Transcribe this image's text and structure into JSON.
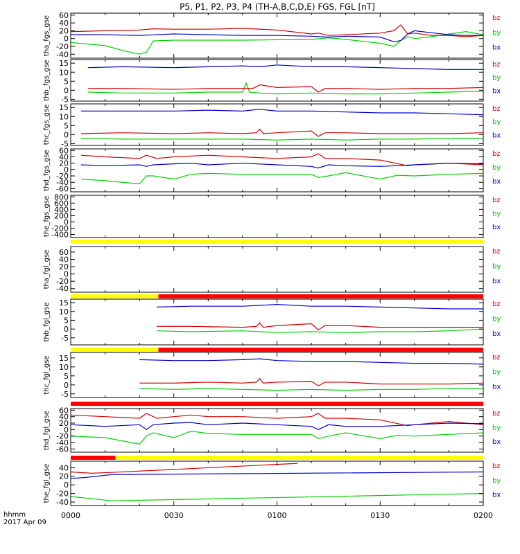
{
  "title": "P5, P1, P2, P3, P4 (TH-A,B,C,D,E) FGS, FGL [nT]",
  "footer": {
    "line1": "hhmm",
    "line2": "2017 Apr 09"
  },
  "x_ticks": [
    "0000",
    "0030",
    "0100",
    "0130",
    "0200"
  ],
  "legend": [
    {
      "label": "bz",
      "color": "#d40000"
    },
    {
      "label": "by",
      "color": "#00c000"
    },
    {
      "label": "bx",
      "color": "#0000c8"
    }
  ],
  "colors": {
    "bx": "#0000c8",
    "by": "#00d000",
    "bz": "#d40000",
    "flag_yellow": "#ffff00",
    "flag_red": "#ff0000",
    "axes": "#000000"
  },
  "chart_data": {
    "type": "line",
    "x_range_minutes": [
      0,
      120
    ],
    "panels": [
      {
        "ylabel": "tha_fgs_gse",
        "ylim": [
          -50,
          65
        ],
        "yticks": [
          "60",
          "40",
          "20",
          "0",
          "-20",
          "-40"
        ],
        "series": [
          {
            "name": "bz",
            "x": [
              0,
              10,
              20,
              24,
              30,
              40,
              50,
              60,
              70,
              72,
              75,
              80,
              90,
              94,
              96,
              98,
              100,
              105,
              110,
              115,
              120
            ],
            "y": [
              18,
              20,
              22,
              25,
              24,
              24,
              26,
              22,
              12,
              14,
              8,
              10,
              14,
              20,
              35,
              12,
              14,
              8,
              8,
              5,
              8
            ]
          },
          {
            "name": "by",
            "x": [
              0,
              5,
              10,
              15,
              20,
              22,
              24,
              30,
              40,
              50,
              60,
              70,
              75,
              80,
              90,
              94,
              96,
              98,
              100,
              105,
              110,
              115,
              120
            ],
            "y": [
              -10,
              -14,
              -18,
              -30,
              -40,
              -35,
              -6,
              -4,
              -4,
              -4,
              -3,
              -2,
              2,
              -2,
              -12,
              -20,
              -5,
              5,
              0,
              5,
              12,
              18,
              10
            ]
          },
          {
            "name": "bx",
            "x": [
              0,
              10,
              20,
              30,
              40,
              50,
              60,
              70,
              75,
              80,
              90,
              94,
              96,
              98,
              100,
              105,
              110,
              115,
              120
            ],
            "y": [
              10,
              10,
              8,
              12,
              10,
              8,
              8,
              6,
              4,
              6,
              4,
              -8,
              -5,
              12,
              20,
              15,
              10,
              8,
              8
            ]
          }
        ]
      },
      {
        "ylabel": "thb_fgs_gse",
        "ylim": [
          -6,
          17
        ],
        "yticks": [
          "15",
          "10",
          "5",
          "0",
          "-5"
        ],
        "series": [
          {
            "name": "bz",
            "x": [
              5,
              15,
              30,
              40,
              49,
              51,
              53,
              55,
              60,
              70,
              72,
              74,
              80,
              90,
              100,
              110,
              120
            ],
            "y": [
              1,
              1,
              0.5,
              1,
              1,
              1,
              1,
              3,
              1.5,
              2,
              -1,
              1,
              1,
              0.5,
              1,
              1,
              1.5
            ]
          },
          {
            "name": "by",
            "x": [
              5,
              15,
              30,
              40,
              50,
              51,
              52,
              55,
              60,
              70,
              80,
              90,
              100,
              110,
              120
            ],
            "y": [
              -1,
              -1.5,
              -1.5,
              -1,
              -1,
              4,
              -1,
              -1.5,
              -2,
              -1.5,
              -2,
              -2,
              -1.5,
              -1,
              -0.5
            ]
          },
          {
            "name": "bx",
            "x": [
              5,
              15,
              30,
              40,
              50,
              55,
              60,
              70,
              80,
              90,
              100,
              110,
              120
            ],
            "y": [
              12.5,
              13,
              12.5,
              13,
              13.5,
              13,
              14,
              13,
              13,
              12.5,
              12,
              11.5,
              11.5
            ]
          }
        ]
      },
      {
        "ylabel": "thc_fgs_gse",
        "ylim": [
          -6,
          17
        ],
        "yticks": [
          "15",
          "10",
          "5",
          "0",
          "-5"
        ],
        "series": [
          {
            "name": "bz",
            "x": [
              3,
              15,
              30,
              40,
              50,
              54,
              55,
              56,
              60,
              70,
              72,
              74,
              80,
              90,
              100,
              110,
              120
            ],
            "y": [
              0.5,
              1,
              0.5,
              1,
              0.5,
              1,
              3,
              0.5,
              1,
              2,
              -1,
              1,
              1,
              0.5,
              0.5,
              0.5,
              1
            ]
          },
          {
            "name": "by",
            "x": [
              3,
              15,
              30,
              40,
              50,
              60,
              70,
              80,
              90,
              100,
              110,
              120
            ],
            "y": [
              -2,
              -2.5,
              -2.5,
              -2.5,
              -2.5,
              -3,
              -2.5,
              -3,
              -2.5,
              -2.5,
              -2,
              -2
            ]
          },
          {
            "name": "bx",
            "x": [
              3,
              15,
              30,
              40,
              50,
              55,
              60,
              70,
              80,
              90,
              100,
              110,
              120
            ],
            "y": [
              13,
              13,
              13,
              13.5,
              13,
              14,
              13,
              13,
              12.5,
              12,
              12,
              11.5,
              11
            ]
          }
        ]
      },
      {
        "ylabel": "thd_fgs_gse",
        "ylim": [
          -70,
          65
        ],
        "yticks": [
          "60",
          "40",
          "20",
          "0",
          "-20",
          "-40",
          "-60"
        ],
        "series": [
          {
            "name": "bz",
            "x": [
              3,
              10,
              20,
              22,
              25,
              30,
              40,
              50,
              60,
              70,
              72,
              74,
              80,
              90,
              98,
              100,
              110,
              120
            ],
            "y": [
              45,
              40,
              35,
              45,
              35,
              40,
              45,
              40,
              35,
              40,
              50,
              35,
              35,
              30,
              12,
              15,
              20,
              15
            ]
          },
          {
            "name": "by",
            "x": [
              3,
              10,
              20,
              22,
              24,
              30,
              35,
              40,
              50,
              60,
              70,
              72,
              75,
              80,
              90,
              95,
              100,
              110,
              120
            ],
            "y": [
              -30,
              -35,
              -45,
              -20,
              -20,
              -30,
              -15,
              -12,
              -15,
              -15,
              -15,
              -25,
              -20,
              -10,
              -30,
              -18,
              -20,
              -15,
              -12
            ]
          },
          {
            "name": "bx",
            "x": [
              3,
              10,
              20,
              22,
              24,
              30,
              35,
              40,
              50,
              60,
              70,
              72,
              75,
              80,
              90,
              100,
              110,
              120
            ],
            "y": [
              15,
              12,
              15,
              10,
              15,
              18,
              20,
              15,
              20,
              15,
              10,
              5,
              15,
              12,
              10,
              15,
              20,
              18
            ]
          }
        ]
      },
      {
        "ylabel": "the_fgs_gse",
        "ylim": [
          -500,
          850
        ],
        "yticks": [
          "800",
          "600",
          "400",
          "200",
          "0",
          "-200",
          "-400"
        ],
        "series": []
      },
      {
        "ylabel": "tha_fgl_gse",
        "ylim": [
          -50,
          75
        ],
        "yticks": [
          "60",
          "40",
          "20",
          "0",
          "-20",
          "-40"
        ],
        "series": []
      },
      {
        "ylabel": "thb_fgl_gse",
        "ylim": [
          -9,
          17
        ],
        "yticks": [
          "15",
          "10",
          "5",
          "0",
          "-5"
        ],
        "series": [
          {
            "name": "bz",
            "x": [
              25,
              35,
              50,
              54,
              55,
              56,
              60,
              70,
              72,
              74,
              80,
              90,
              100,
              110,
              120
            ],
            "y": [
              1.5,
              1.5,
              1,
              1.5,
              3.5,
              1,
              2,
              3,
              -0.5,
              2,
              2,
              1,
              1,
              1,
              1
            ]
          },
          {
            "name": "by",
            "x": [
              25,
              35,
              50,
              60,
              70,
              80,
              90,
              100,
              110,
              120
            ],
            "y": [
              -1,
              -1.5,
              -1,
              -2,
              -1.5,
              -2,
              -1.5,
              -1.5,
              -1,
              0
            ]
          },
          {
            "name": "bx",
            "x": [
              25,
              35,
              50,
              55,
              60,
              70,
              80,
              90,
              100,
              110,
              120
            ],
            "y": [
              12.5,
              13,
              13,
              13.5,
              14,
              13,
              13,
              12.5,
              12,
              11.5,
              11.5
            ]
          }
        ]
      },
      {
        "ylabel": "thc_fgl_gse",
        "ylim": [
          -7,
          18
        ],
        "yticks": [
          "15",
          "10",
          "5",
          "0",
          "-5"
        ],
        "series": [
          {
            "name": "bz",
            "x": [
              20,
              30,
              40,
              50,
              54,
              55,
              56,
              60,
              70,
              72,
              74,
              80,
              90,
              100,
              110,
              120
            ],
            "y": [
              1,
              1,
              1.5,
              1,
              1.5,
              3.5,
              1,
              1.5,
              2,
              -0.5,
              1.5,
              1.5,
              0.5,
              0.5,
              0.5,
              1
            ]
          },
          {
            "name": "by",
            "x": [
              20,
              30,
              40,
              50,
              60,
              70,
              80,
              90,
              100,
              110,
              120
            ],
            "y": [
              -2,
              -2.5,
              -2,
              -2.5,
              -3,
              -2.5,
              -3,
              -2.5,
              -2.5,
              -2,
              -2
            ]
          },
          {
            "name": "bx",
            "x": [
              20,
              30,
              40,
              50,
              55,
              60,
              70,
              80,
              90,
              100,
              110,
              120
            ],
            "y": [
              14,
              13.5,
              13.5,
              14,
              14.5,
              13.5,
              13,
              13,
              12.5,
              12,
              12,
              11.5
            ]
          }
        ]
      },
      {
        "ylabel": "thd_fgl_gse",
        "ylim": [
          -70,
          65
        ],
        "yticks": [
          "60",
          "40",
          "20",
          "0",
          "-20",
          "-40",
          "-60"
        ],
        "series": [
          {
            "name": "bz",
            "x": [
              0,
              10,
              20,
              22,
              25,
              30,
              35,
              40,
              50,
              60,
              70,
              72,
              74,
              80,
              90,
              98,
              100,
              110,
              120
            ],
            "y": [
              45,
              40,
              35,
              50,
              35,
              40,
              45,
              40,
              40,
              35,
              40,
              50,
              35,
              35,
              30,
              12,
              15,
              25,
              15
            ]
          },
          {
            "name": "by",
            "x": [
              0,
              10,
              20,
              22,
              24,
              30,
              35,
              40,
              50,
              60,
              70,
              72,
              75,
              80,
              90,
              95,
              100,
              110,
              120
            ],
            "y": [
              -20,
              -25,
              -45,
              -20,
              -10,
              -25,
              -5,
              -12,
              -15,
              -15,
              -15,
              -28,
              -20,
              -10,
              -28,
              -18,
              -20,
              -15,
              -10
            ]
          },
          {
            "name": "bx",
            "x": [
              0,
              10,
              20,
              22,
              24,
              30,
              35,
              40,
              50,
              60,
              70,
              72,
              75,
              80,
              90,
              100,
              110,
              120
            ],
            "y": [
              15,
              10,
              15,
              0,
              15,
              20,
              22,
              15,
              20,
              15,
              10,
              0,
              15,
              10,
              10,
              15,
              20,
              18
            ]
          }
        ]
      },
      {
        "ylabel": "the_fgl_gse",
        "ylim": [
          -48,
          55
        ],
        "yticks": [
          "40",
          "20",
          "0",
          "-20",
          "-40"
        ],
        "series": [
          {
            "name": "bz",
            "x": [
              0,
              6,
              12,
              66
            ],
            "y": [
              30,
              27,
              29,
              50
            ]
          },
          {
            "name": "by",
            "x": [
              0,
              6,
              12,
              120
            ],
            "y": [
              -27,
              -32,
              -37,
              -20
            ]
          },
          {
            "name": "bx",
            "x": [
              0,
              4,
              12,
              120
            ],
            "y": [
              15,
              17,
              24,
              30
            ]
          }
        ]
      }
    ]
  }
}
